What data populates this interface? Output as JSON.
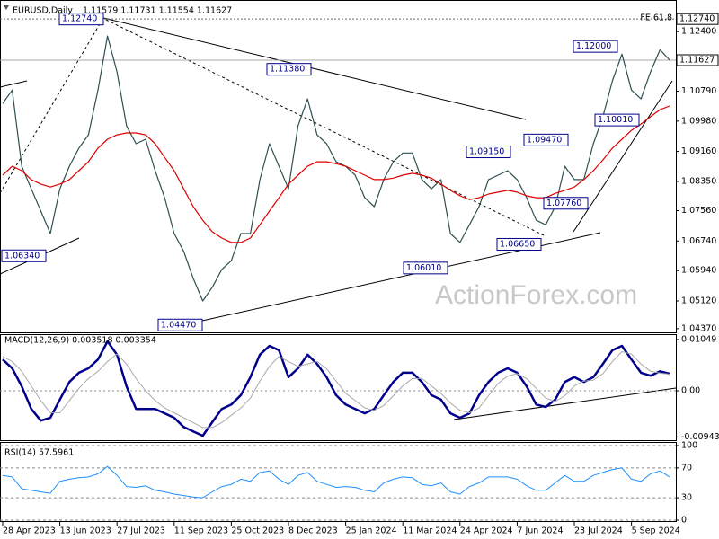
{
  "chart_data": [
    {
      "type": "line",
      "title": "EURUSD,Daily",
      "subtitle": "1.11579 1.11731 1.11554 1.11627",
      "series": [
        {
          "color": "#2f4f4f",
          "values": [
            1.1046,
            1.1082,
            1.0876,
            1.0815,
            1.0755,
            1.0694,
            1.0815,
            1.0876,
            1.0925,
            1.0961,
            1.1082,
            1.1228,
            1.1131,
            1.0985,
            1.0937,
            1.0949,
            1.0864,
            1.0791,
            1.0694,
            1.0646,
            1.0573,
            1.0512,
            1.0549,
            1.0597,
            1.0621,
            1.0694,
            1.0694,
            1.084,
            1.0937,
            1.0876,
            1.0815,
            1.0985,
            1.1058,
            1.0961,
            1.0937,
            1.0888,
            1.0876,
            1.0852,
            1.0791,
            1.0767,
            1.084,
            1.0888,
            1.0912,
            1.0912,
            1.084,
            1.0815,
            1.084,
            1.0694,
            1.067,
            1.0718,
            1.0767,
            1.084,
            1.0852,
            1.0864,
            1.084,
            1.0791,
            1.073,
            1.0718,
            1.0767,
            1.0876,
            1.084,
            1.084,
            1.0937,
            1.101,
            1.1107,
            1.1179,
            1.1082,
            1.1058,
            1.1131,
            1.1191,
            1.1163
          ]
        },
        {
          "color": "#e00000",
          "values": [
            1.0852,
            1.0876,
            1.0864,
            1.084,
            1.0828,
            1.082,
            1.0828,
            1.084,
            1.0864,
            1.0888,
            1.0925,
            1.0949,
            1.0961,
            1.0966,
            1.0966,
            1.0961,
            1.0937,
            1.09,
            1.0864,
            1.0815,
            1.0767,
            1.073,
            1.0699,
            1.0682,
            1.067,
            1.067,
            1.0682,
            1.0718,
            1.0755,
            1.0791,
            1.0828,
            1.0852,
            1.0876,
            1.0888,
            1.0888,
            1.0883,
            1.0876,
            1.0864,
            1.0852,
            1.084,
            1.084,
            1.0844,
            1.0852,
            1.0857,
            1.0852,
            1.0844,
            1.0828,
            1.0811,
            1.0796,
            1.0786,
            1.0791,
            1.0801,
            1.0806,
            1.0811,
            1.0806,
            1.0796,
            1.0791,
            1.0791,
            1.0803,
            1.0811,
            1.082,
            1.084,
            1.0864,
            1.0893,
            1.0925,
            1.0949,
            1.0973,
            1.099,
            1.101,
            1.1029,
            1.1039
          ]
        }
      ],
      "ylim": [
        1.0427,
        1.1306
      ],
      "yticks": [
        {
          "value": 1.124,
          "label": "1.12400"
        },
        {
          "value": 1.1079,
          "label": "1.10790"
        },
        {
          "value": 1.0998,
          "label": "1.09980"
        },
        {
          "value": 1.0916,
          "label": "1.09160"
        },
        {
          "value": 1.0835,
          "label": "1.08350"
        },
        {
          "value": 1.0756,
          "label": "1.07560"
        },
        {
          "value": 1.0674,
          "label": "1.06740"
        },
        {
          "value": 1.0594,
          "label": "1.05940"
        },
        {
          "value": 1.0512,
          "label": "1.05120"
        },
        {
          "value": 1.0437,
          "label": "1.04370"
        }
      ],
      "grid": false,
      "price_marker": {
        "value": 1.11627,
        "label": "1.11627"
      },
      "fe_level": {
        "name": "FE 61.8",
        "value": 1.1274,
        "label": "1.12740"
      },
      "annotations": [
        {
          "value": 1.1274,
          "label": "1.12740"
        },
        {
          "value": 1.1138,
          "label": "1.11380"
        },
        {
          "value": 1.0447,
          "label": "1.04470"
        },
        {
          "value": 1.0634,
          "label": "1.06340"
        },
        {
          "value": 1.0915,
          "label": "1.09150"
        },
        {
          "value": 1.0947,
          "label": "1.09470"
        },
        {
          "value": 1.12,
          "label": "1.12000"
        },
        {
          "value": 1.1001,
          "label": "1.10010"
        },
        {
          "value": 1.0776,
          "label": "1.07760"
        },
        {
          "value": 1.0665,
          "label": "1.06650"
        },
        {
          "value": 1.0601,
          "label": "1.06010"
        }
      ]
    },
    {
      "type": "line",
      "title": "MACD(12,26,9) 0.003518 0.003354",
      "series": [
        {
          "color": "#00008b",
          "width": 2.5,
          "values": [
            0.0064,
            0.0046,
            0.0009,
            -0.0037,
            -0.0061,
            -0.0055,
            -0.0018,
            0.0018,
            0.0037,
            0.0046,
            0.0064,
            0.0101,
            0.0074,
            0.0009,
            -0.0037,
            -0.0037,
            -0.0037,
            -0.0046,
            -0.0055,
            -0.0074,
            -0.0083,
            -0.0092,
            -0.0064,
            -0.0037,
            -0.0028,
            -0.0009,
            0.0028,
            0.0074,
            0.0092,
            0.0083,
            0.0028,
            0.0046,
            0.0074,
            0.0055,
            0.0028,
            -0.0009,
            -0.0028,
            -0.0037,
            -0.0046,
            -0.0037,
            -0.0009,
            0.0018,
            0.0037,
            0.0037,
            0.0018,
            -0.0009,
            -0.0018,
            -0.0046,
            -0.0055,
            -0.0046,
            -0.0009,
            0.0018,
            0.0037,
            0.0046,
            0.0037,
            0.0009,
            -0.0028,
            -0.0033,
            -0.0018,
            0.0018,
            0.0028,
            0.0018,
            0.0028,
            0.0055,
            0.0083,
            0.0092,
            0.0064,
            0.0037,
            0.0031,
            0.004,
            0.0035
          ]
        },
        {
          "color": "#a9a9a9",
          "width": 1,
          "values": [
            0.007,
            0.006,
            0.004,
            0.001,
            -0.002,
            -0.0045,
            -0.0045,
            -0.002,
            0.0005,
            0.0025,
            0.004,
            0.006,
            0.0075,
            0.0055,
            0.0025,
            0.0,
            -0.002,
            -0.0035,
            -0.0045,
            -0.0055,
            -0.0065,
            -0.0075,
            -0.0075,
            -0.0065,
            -0.005,
            -0.0035,
            -0.0015,
            0.002,
            0.005,
            0.007,
            0.006,
            0.005,
            0.0055,
            0.006,
            0.0045,
            0.002,
            -0.0005,
            -0.002,
            -0.0035,
            -0.004,
            -0.003,
            -0.001,
            0.001,
            0.0025,
            0.0025,
            0.001,
            -0.0005,
            -0.0025,
            -0.004,
            -0.0045,
            -0.0035,
            -0.001,
            0.0015,
            0.003,
            0.0035,
            0.0025,
            0.0005,
            -0.0015,
            -0.0022,
            -0.001,
            0.001,
            0.002,
            0.0022,
            0.0035,
            0.006,
            0.008,
            0.0075,
            0.0055,
            0.004,
            0.0036,
            0.0034
          ]
        }
      ],
      "ylim": [
        -0.0101,
        0.0114
      ],
      "yticks": [
        0.01049,
        {
          "value": 0,
          "label": "0.00"
        },
        -0.009435
      ],
      "zero_line": true
    },
    {
      "type": "line",
      "title": "RSI(14) 57.5961",
      "categories": [
        "28 Apr 2023",
        null,
        null,
        null,
        null,
        null,
        "13 Jun 2023",
        null,
        null,
        null,
        null,
        null,
        "27 Jul 2023",
        null,
        null,
        null,
        null,
        null,
        "11 Sep 2023",
        null,
        null,
        null,
        null,
        null,
        "25 Oct 2023",
        null,
        null,
        null,
        null,
        null,
        "8 Dec 2023",
        null,
        null,
        null,
        null,
        null,
        "25 Jan 2024",
        null,
        null,
        null,
        null,
        null,
        "11 Mar 2024",
        null,
        null,
        null,
        null,
        null,
        "24 Apr 2024",
        null,
        null,
        null,
        null,
        null,
        "7 Jun 2024",
        null,
        null,
        null,
        null,
        null,
        "23 Jul 2024",
        null,
        null,
        null,
        null,
        null,
        "5 Sep 2024",
        null,
        null,
        null,
        null
      ],
      "series": [
        {
          "color": "#1e90ff",
          "width": 1,
          "values": [
            60,
            58,
            42,
            40,
            38,
            36,
            52,
            55,
            57,
            58,
            62,
            72,
            60,
            45,
            44,
            46,
            40,
            38,
            35,
            33,
            31,
            30,
            38,
            45,
            48,
            55,
            52,
            64,
            66,
            55,
            48,
            60,
            64,
            52,
            48,
            44,
            45,
            44,
            40,
            38,
            50,
            55,
            58,
            57,
            48,
            46,
            50,
            38,
            35,
            45,
            50,
            58,
            58,
            58,
            55,
            46,
            40,
            40,
            50,
            60,
            52,
            52,
            60,
            64,
            68,
            70,
            55,
            52,
            62,
            66,
            58
          ]
        }
      ],
      "ylim": [
        0,
        100
      ],
      "yticks": [
        0,
        30,
        70,
        100
      ],
      "grid": true
    }
  ],
  "watermark": "ActionForex.com"
}
